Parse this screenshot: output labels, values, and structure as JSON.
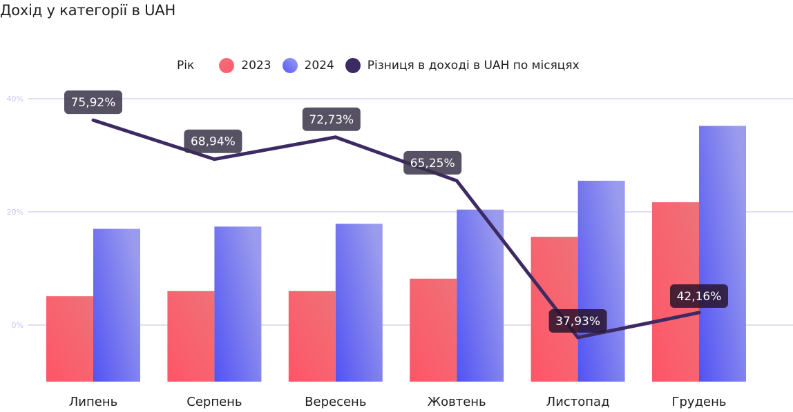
{
  "title": "Дохід у категорії в UAH",
  "legend": {
    "title": "Рік",
    "items": [
      {
        "label": "2023",
        "color": "#f6626f"
      },
      {
        "label": "2024",
        "color": "#6f72f3"
      },
      {
        "label": "Різниця в доході в UAH по місяцях",
        "color": "#3e2a63"
      }
    ]
  },
  "chart_data": {
    "type": "bar",
    "title": "Дохід у категорії в UAH",
    "xlabel": "",
    "ylabel": "",
    "categories": [
      "Липень",
      "Серпень",
      "Вересень",
      "Жовтень",
      "Листопад",
      "Грудень"
    ],
    "yticks": [
      "0%",
      "20%",
      "40%"
    ],
    "ylim": [
      -10,
      40
    ],
    "grid": true,
    "legend_position": "top",
    "series": [
      {
        "name": "2023",
        "type": "bar",
        "color": "#f6626f",
        "values": [
          5.1,
          6.0,
          6.0,
          8.2,
          15.6,
          21.7
        ]
      },
      {
        "name": "2024",
        "type": "bar",
        "color": "#6f72f3",
        "values": [
          17.0,
          17.4,
          17.9,
          20.4,
          25.5,
          35.2
        ]
      },
      {
        "name": "Різниця в доході в UAH по місяцях",
        "type": "line",
        "color": "#3e2a63",
        "values": [
          36.2,
          29.3,
          33.2,
          25.5,
          -2.2,
          2.2
        ],
        "labels": [
          "75,92%",
          "68,94%",
          "72,73%",
          "65,25%",
          "37,93%",
          "42,16%"
        ]
      }
    ]
  }
}
